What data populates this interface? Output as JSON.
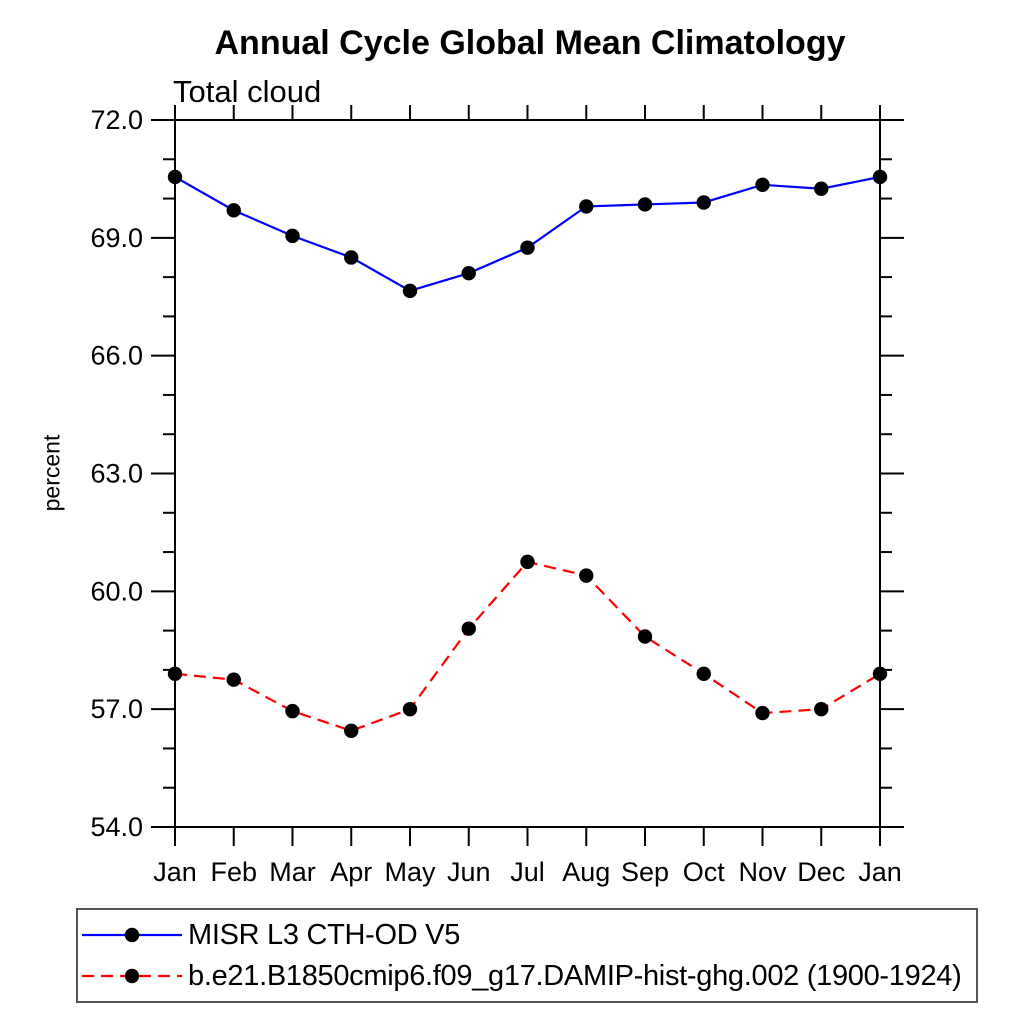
{
  "chart_data": {
    "type": "line",
    "title": "Annual Cycle Global Mean Climatology",
    "subtitle": "Total cloud",
    "ylabel": "percent",
    "xlabel": "",
    "ylim": [
      54.0,
      72.0
    ],
    "ytick_major_values": [
      72.0,
      69.0,
      66.0,
      63.0,
      60.0,
      57.0,
      54.0
    ],
    "ytick_major_labels": [
      "72.0",
      "69.0",
      "66.0",
      "63.0",
      "60.0",
      "57.0",
      "54.0"
    ],
    "ytick_minor_step": 1.0,
    "categories": [
      "Jan",
      "Feb",
      "Mar",
      "Apr",
      "May",
      "Jun",
      "Jul",
      "Aug",
      "Sep",
      "Oct",
      "Nov",
      "Dec",
      "Jan"
    ],
    "grid": false,
    "legend_position": "bottom",
    "series": [
      {
        "name": "MISR L3 CTH-OD V5",
        "color": "#0000ff",
        "line_style": "solid",
        "marker": "circle",
        "marker_color": "#000000",
        "values": [
          70.55,
          69.7,
          69.05,
          68.5,
          67.65,
          68.1,
          68.75,
          69.8,
          69.85,
          69.9,
          70.35,
          70.25,
          70.55
        ]
      },
      {
        "name": "b.e21.B1850cmip6.f09_g17.DAMIP-hist-ghg.002 (1900-1924)",
        "color": "#ff0000",
        "line_style": "dashed",
        "marker": "circle",
        "marker_color": "#000000",
        "values": [
          57.9,
          57.75,
          56.95,
          56.45,
          57.0,
          59.05,
          60.75,
          60.4,
          58.85,
          57.9,
          56.9,
          57.0,
          57.9
        ]
      }
    ]
  },
  "colors": {
    "axis": "#000000",
    "background": "#ffffff",
    "legend_border": "#555555",
    "series_blue": "#0000ff",
    "series_red": "#ff0000",
    "marker": "#000000"
  }
}
